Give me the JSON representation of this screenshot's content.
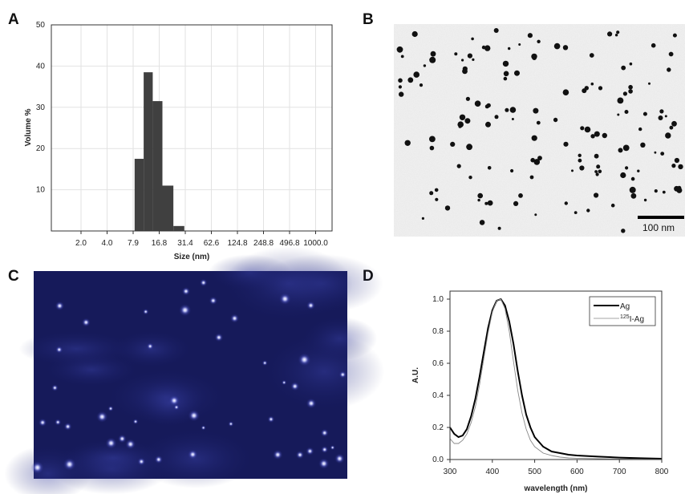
{
  "panels": {
    "a": "A",
    "b": "B",
    "c": "C",
    "d": "D"
  },
  "tem_scale_bar_label": "100 nm",
  "chart_data": [
    {
      "panel": "A",
      "type": "bar",
      "xlabel": "Size (nm)",
      "ylabel": "Volume %",
      "xtick_labels": [
        "2.0",
        "4.0",
        "7.9",
        "16.8",
        "31.4",
        "62.6",
        "124.8",
        "248.8",
        "496.8",
        "1000.0"
      ],
      "yticks": [
        10,
        20,
        30,
        40,
        50
      ],
      "ylim": [
        0,
        50
      ],
      "grid": true,
      "bar_color": "#404040",
      "bars": [
        {
          "size": 9.4,
          "value": 17.5
        },
        {
          "size": 12.2,
          "value": 38.5
        },
        {
          "size": 15.9,
          "value": 31.5
        },
        {
          "size": 20.7,
          "value": 11.0
        },
        {
          "size": 26.9,
          "value": 1.2
        }
      ]
    },
    {
      "panel": "D",
      "type": "line",
      "xlabel": "wavelength (nm)",
      "ylabel": "A.U.",
      "xlim": [
        300,
        800
      ],
      "ylim": [
        0.0,
        1.05
      ],
      "xticks": [
        300,
        400,
        500,
        600,
        700,
        800
      ],
      "yticks": [
        0.0,
        0.2,
        0.4,
        0.6,
        0.8,
        1.0
      ],
      "legend_position": "top-right",
      "series": [
        {
          "name": "Ag",
          "sup_prefix": "",
          "color": "#000000",
          "x": [
            300,
            310,
            320,
            330,
            340,
            350,
            360,
            370,
            380,
            390,
            400,
            410,
            420,
            430,
            440,
            450,
            460,
            470,
            480,
            490,
            500,
            520,
            540,
            560,
            580,
            600,
            650,
            700,
            750,
            800
          ],
          "y": [
            0.2,
            0.16,
            0.14,
            0.15,
            0.19,
            0.27,
            0.38,
            0.52,
            0.67,
            0.82,
            0.93,
            0.99,
            1.0,
            0.96,
            0.86,
            0.72,
            0.55,
            0.4,
            0.28,
            0.2,
            0.14,
            0.08,
            0.05,
            0.04,
            0.03,
            0.025,
            0.018,
            0.012,
            0.008,
            0.005
          ]
        },
        {
          "name": "I-Ag",
          "sup_prefix": "125",
          "color": "#888888",
          "x": [
            300,
            310,
            320,
            330,
            340,
            350,
            360,
            370,
            380,
            390,
            400,
            410,
            420,
            430,
            440,
            450,
            460,
            470,
            480,
            490,
            500,
            520,
            540,
            560,
            580,
            600,
            650,
            700,
            750,
            800
          ],
          "y": [
            0.13,
            0.1,
            0.1,
            0.12,
            0.16,
            0.23,
            0.33,
            0.47,
            0.63,
            0.79,
            0.92,
            0.99,
            1.0,
            0.94,
            0.8,
            0.61,
            0.43,
            0.29,
            0.19,
            0.12,
            0.08,
            0.04,
            0.025,
            0.015,
            0.01,
            0.008,
            0.005,
            0.003,
            0.002,
            0.001
          ]
        }
      ]
    }
  ]
}
